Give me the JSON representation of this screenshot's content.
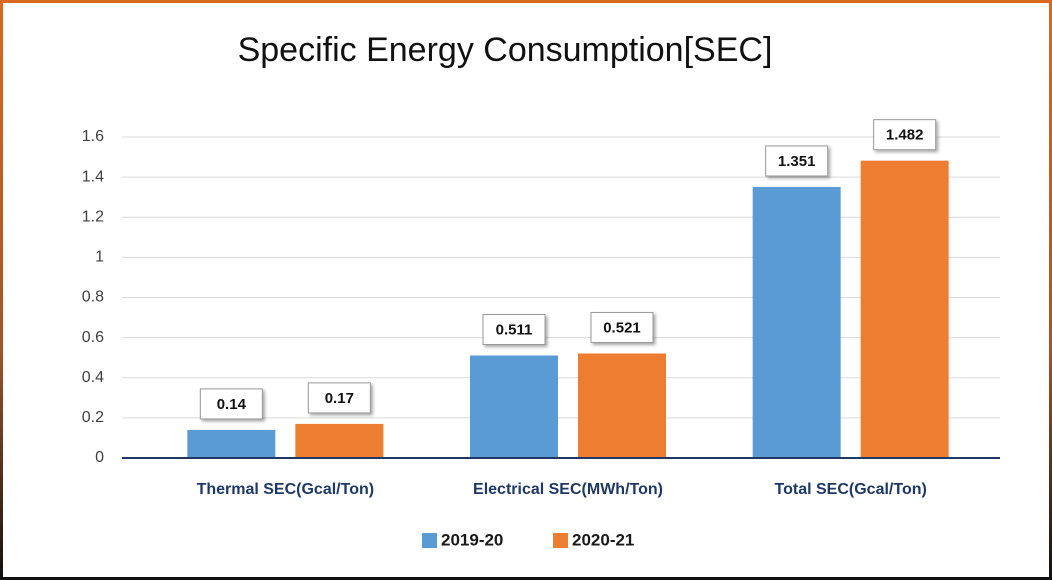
{
  "chart_data": {
    "type": "bar",
    "title": "Specific Energy Consumption[SEC]",
    "categories": [
      "Thermal SEC(Gcal/Ton)",
      "Electrical SEC(MWh/Ton)",
      "Total SEC(Gcal/Ton)"
    ],
    "series": [
      {
        "name": "2019-20",
        "color": "#5b9bd5",
        "values": [
          0.14,
          0.511,
          1.351
        ]
      },
      {
        "name": "2020-21",
        "color": "#ed7d31",
        "values": [
          0.17,
          0.521,
          1.482
        ]
      }
    ],
    "ylim": [
      0,
      1.6
    ],
    "yticks": [
      0,
      0.2,
      0.4,
      0.6,
      0.8,
      1,
      1.2,
      1.4,
      1.6
    ],
    "grid": true,
    "legend": "bottom"
  }
}
